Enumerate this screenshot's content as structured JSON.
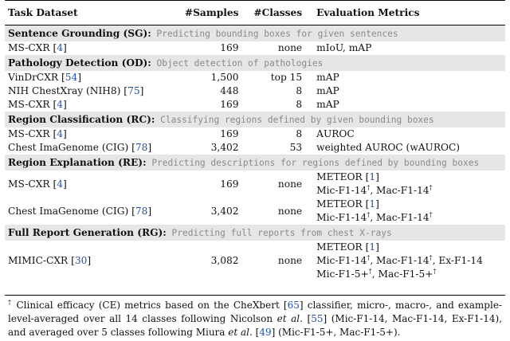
{
  "headers": [
    "Task Dataset",
    "#Samples",
    "#Classes",
    "Evaluation Metrics"
  ],
  "sections": [
    {
      "name": "Sentence Grounding (SG):",
      "desc": "Predicting bounding boxes for given sentences",
      "rows": [
        {
          "dataset": "MS-CXR",
          "ref": "4",
          "samples": "169",
          "classes": "none",
          "metrics": [
            "mIoU, mAP"
          ]
        }
      ]
    },
    {
      "name": "Pathology Detection (OD):",
      "desc": "Object detection of pathologies",
      "rows": [
        {
          "dataset": "VinDrCXR",
          "ref": "54",
          "samples": "1,500",
          "classes": "top 15",
          "metrics": [
            "mAP"
          ]
        },
        {
          "dataset": "NIH ChestXray (NIH8)",
          "ref": "75",
          "samples": "448",
          "classes": "8",
          "metrics": [
            "mAP"
          ]
        },
        {
          "dataset": "MS-CXR",
          "ref": "4",
          "samples": "169",
          "classes": "8",
          "metrics": [
            "mAP"
          ]
        }
      ]
    },
    {
      "name": "Region Classification (RC):",
      "desc": "Classifying regions defined by given bounding boxes",
      "rows": [
        {
          "dataset": "MS-CXR",
          "ref": "4",
          "samples": "169",
          "classes": "8",
          "metrics": [
            "AUROC"
          ]
        },
        {
          "dataset": "Chest ImaGenome (CIG)",
          "ref": "78",
          "samples": "3,402",
          "classes": "53",
          "metrics": [
            "weighted AUROC (wAUROC)"
          ]
        }
      ]
    },
    {
      "name": "Region Explanation (RE):",
      "desc": "Predicting descriptions for regions defined by bounding boxes",
      "rows": [
        {
          "dataset": "MS-CXR",
          "ref": "4",
          "samples": "169",
          "classes": "none",
          "metrics": [
            "METEOR [1]",
            "Mic-F1-14†, Mac-F1-14†"
          ]
        },
        {
          "dataset": "Chest ImaGenome (CIG)",
          "ref": "78",
          "samples": "3,402",
          "classes": "none",
          "metrics": [
            "METEOR [1]",
            "Mic-F1-14†, Mac-F1-14†"
          ]
        }
      ]
    },
    {
      "name": "Full Report Generation (RG):",
      "desc": "Predicting full reports from chest X-rays",
      "rows": [
        {
          "dataset": "MIMIC-CXR",
          "ref": "30",
          "samples": "3,082",
          "classes": "none",
          "metrics": [
            "METEOR [1]",
            "Mic-F1-14†, Mac-F1-14†, Ex-F1-14",
            "Mic-F1-5+†, Mac-F1-5+†"
          ]
        }
      ]
    }
  ],
  "footnote": "† Clinical efficacy (CE) metrics based on the CheXbert [65] classifier, micro-, macro-, and example-level-averaged over all 14 classes following Nicolson et al. [55] (Mic-F1-14, Mac-F1-14, Ex-F1-14), and averaged over 5 classes following Miura et al. [49] (Mic-F1-5+, Mac-F1-5+)."
}
